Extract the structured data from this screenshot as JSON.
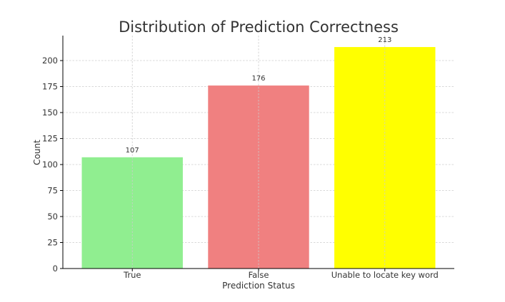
{
  "chart_data": {
    "type": "bar",
    "title": "Distribution of Prediction Correctness",
    "xlabel": "Prediction Status",
    "ylabel": "Count",
    "categories": [
      "True",
      "False",
      "Unable to locate key word"
    ],
    "values": [
      107,
      176,
      213
    ],
    "data_labels": [
      "107",
      "176",
      "213"
    ],
    "colors": [
      "#90ee90",
      "#f08080",
      "#ffff00"
    ],
    "ylim": [
      0,
      224
    ],
    "yticks": [
      0,
      25,
      50,
      75,
      100,
      125,
      150,
      175,
      200
    ],
    "grid": true,
    "legend": "none"
  }
}
